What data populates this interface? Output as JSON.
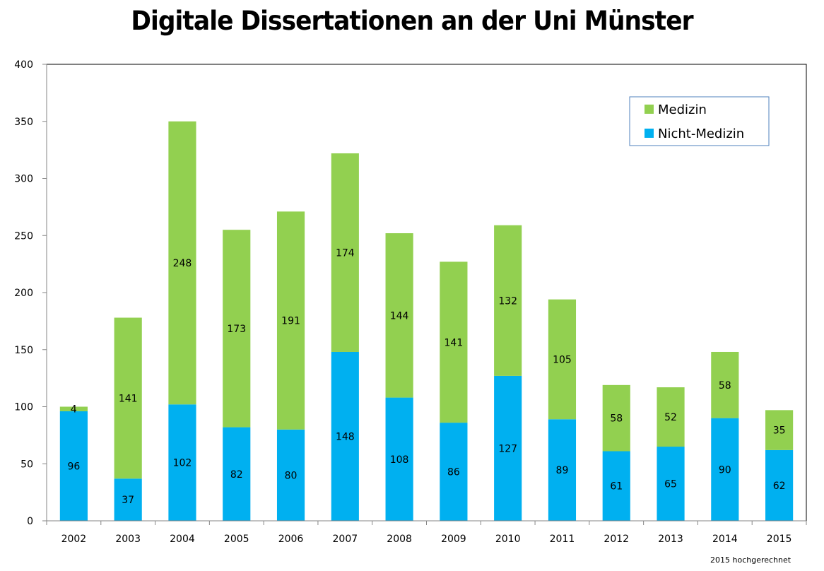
{
  "chart_data": {
    "type": "bar",
    "stacked": true,
    "title": "Digitale Dissertationen an der Uni Münster",
    "xlabel": "",
    "ylabel": "",
    "categories": [
      "2002",
      "2003",
      "2004",
      "2005",
      "2006",
      "2007",
      "2008",
      "2009",
      "2010",
      "2011",
      "2012",
      "2013",
      "2014",
      "2015"
    ],
    "series": [
      {
        "name": "Nicht-Medizin",
        "color": "#00B0F0",
        "values": [
          96,
          37,
          102,
          82,
          80,
          148,
          108,
          86,
          127,
          89,
          61,
          65,
          90,
          62
        ]
      },
      {
        "name": "Medizin",
        "color": "#92D050",
        "values": [
          4,
          141,
          248,
          173,
          191,
          174,
          144,
          141,
          132,
          105,
          58,
          52,
          58,
          35
        ]
      }
    ],
    "ylim": [
      0,
      400
    ],
    "yticks": [
      0,
      50,
      100,
      150,
      200,
      250,
      300,
      350,
      400
    ],
    "grid": false,
    "legend": {
      "placement": "top-right",
      "entries": [
        "Medizin",
        "Nicht-Medizin"
      ]
    },
    "footnote": "2015 hochgerechnet"
  }
}
